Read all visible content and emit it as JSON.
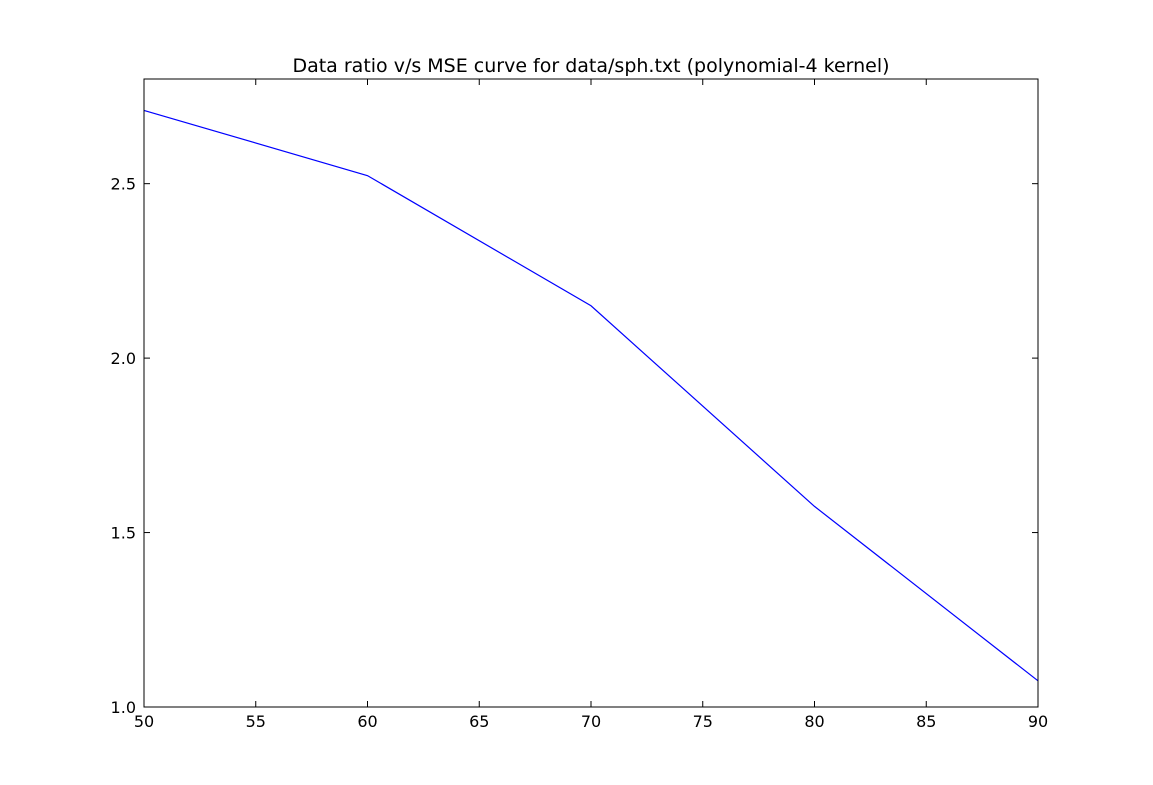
{
  "chart_data": {
    "type": "line",
    "title": "Data ratio v/s MSE curve for data/sph.txt (polynomial-4 kernel)",
    "xlabel": "",
    "ylabel": "",
    "xlim": [
      50,
      90
    ],
    "ylim": [
      1.0,
      2.8
    ],
    "x_ticks": [
      50,
      55,
      60,
      65,
      70,
      75,
      80,
      85,
      90
    ],
    "y_ticks": [
      1.0,
      1.5,
      2.0,
      2.5
    ],
    "x_tick_labels": [
      "50",
      "55",
      "60",
      "65",
      "70",
      "75",
      "80",
      "85",
      "90"
    ],
    "y_tick_labels": [
      "1.0",
      "1.5",
      "2.0",
      "2.5"
    ],
    "grid": false,
    "legend": "none",
    "series": [
      {
        "color": "#0000ff",
        "x": [
          50,
          60,
          70,
          80,
          90
        ],
        "y": [
          2.71,
          2.523,
          2.15,
          1.575,
          1.075
        ]
      }
    ]
  }
}
